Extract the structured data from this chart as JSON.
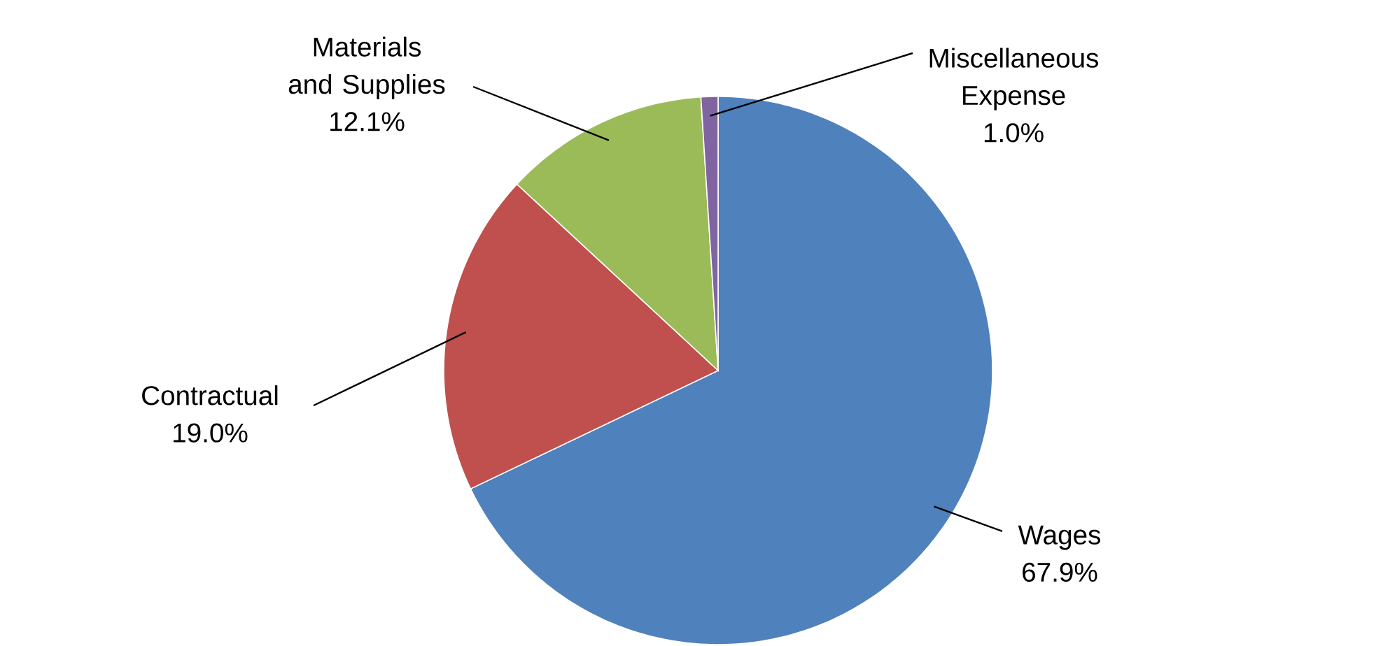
{
  "chart_data": {
    "type": "pie",
    "categories": [
      "Wages",
      "Contractual",
      "Materials and Supplies",
      "Miscellaneous Expense"
    ],
    "values": [
      67.9,
      19.0,
      12.1,
      1.0
    ],
    "colors": [
      "#4f81bd",
      "#c0504d",
      "#9bbb59",
      "#8064a2"
    ],
    "value_labels": [
      "67.9%",
      "19.0%",
      "12.1%",
      "1.0%"
    ]
  }
}
